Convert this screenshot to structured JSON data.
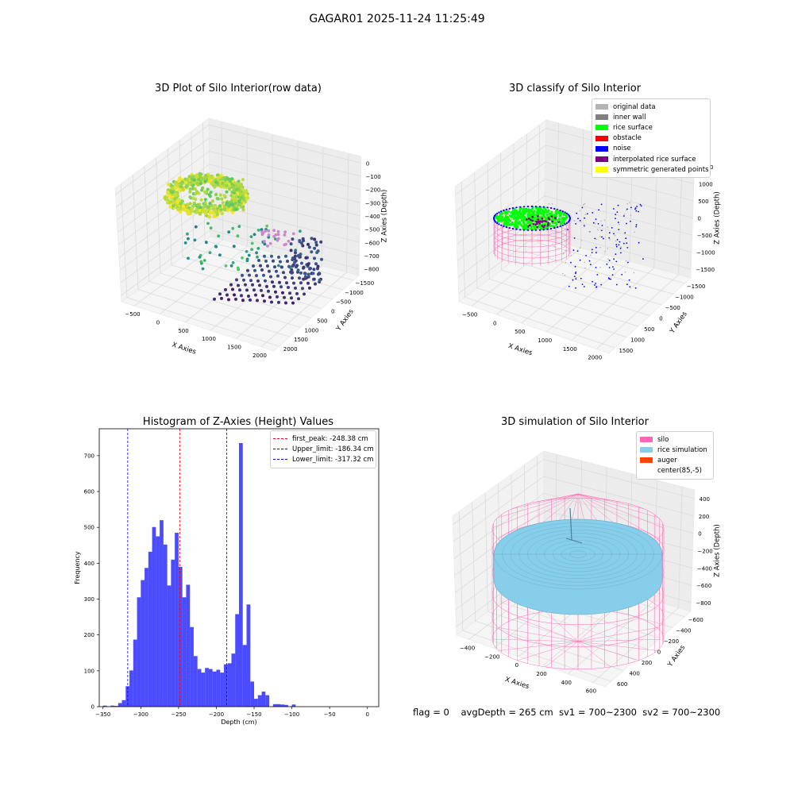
{
  "figure": {
    "suptitle": "GAGAR01 2025-11-24 11:25:49",
    "status": {
      "flag": "flag = 0",
      "avg_depth": "avgDepth = 265 cm",
      "sv1": "sv1 = 700~2300",
      "sv2": "sv2 = 700~2300"
    }
  },
  "chart_data": [
    {
      "type": "scatter",
      "title": "3D Plot of Silo Interior(row data)",
      "xlabel": "X Axies",
      "ylabel": "Y Axies",
      "zlabel": "Z Axies (Depth)",
      "x_ticks": [
        "−500",
        "0",
        "500",
        "1000",
        "1500",
        "2000"
      ],
      "y_ticks": [
        "−1500",
        "−1000",
        "−500",
        "0",
        "500",
        "1000",
        "1500",
        "2000"
      ],
      "z_ticks": [
        "0",
        "−100",
        "−200",
        "−300",
        "−400",
        "−500",
        "−600",
        "−700",
        "−800"
      ],
      "colormap": "viridis",
      "grid": true
    },
    {
      "type": "scatter",
      "title": "3D classify of Silo Interior",
      "xlabel": "X Axies",
      "ylabel": "Y Axies",
      "zlabel": "Z Axies (Depth)",
      "x_ticks": [
        "−500",
        "0",
        "500",
        "1000",
        "1500",
        "2000"
      ],
      "y_ticks": [
        "−1500",
        "−1000",
        "−500",
        "0",
        "500",
        "1000",
        "1500"
      ],
      "z_ticks": [
        "1500",
        "1000",
        "500",
        "0",
        "−500",
        "−1000",
        "−1500"
      ],
      "legend": [
        {
          "label": "original data",
          "color": "#b3b3b3"
        },
        {
          "label": "inner wall",
          "color": "#808080"
        },
        {
          "label": "rice surface",
          "color": "#00ff00"
        },
        {
          "label": "obstacle",
          "color": "#ff0000"
        },
        {
          "label": "noise",
          "color": "#0000ff"
        },
        {
          "label": "interpolated rice surface",
          "color": "#800080"
        },
        {
          "label": "symmetric generated points",
          "color": "#ffff00"
        }
      ],
      "legend_position": "top-right",
      "grid": true
    },
    {
      "type": "bar",
      "title": "Histogram of Z-Axies (Height) Values",
      "xlabel": "Depth (cm)",
      "ylabel": "Frequency",
      "xlim": [
        -355,
        15
      ],
      "ylim": [
        0,
        775
      ],
      "x_ticks": [
        -350,
        -300,
        -250,
        -200,
        -150,
        -100,
        -50,
        0
      ],
      "y_ticks": [
        0,
        100,
        200,
        300,
        400,
        500,
        600,
        700
      ],
      "bin_width": 5,
      "bin_start": -350,
      "values": [
        3,
        1,
        3,
        2,
        10,
        18,
        57,
        101,
        187,
        305,
        353,
        387,
        432,
        501,
        475,
        520,
        452,
        338,
        410,
        485,
        390,
        305,
        340,
        222,
        141,
        105,
        95,
        108,
        105,
        98,
        103,
        95,
        118,
        121,
        148,
        258,
        735,
        172,
        285,
        70,
        22,
        32,
        42,
        32,
        0,
        7,
        7,
        6,
        5,
        0,
        6
      ],
      "bar_color": "#0000ff",
      "lines": [
        {
          "label": "first_peak: -248.38 cm",
          "x": -248.38,
          "color": "#ff0000"
        },
        {
          "label": "Upper_limit: -186.34 cm",
          "x": -186.34,
          "color": "#0000ff"
        },
        {
          "label": "Lower_limit: -317.32 cm",
          "x": -317.32,
          "color": "#0000ff"
        }
      ],
      "legend_position": "top-right"
    },
    {
      "type": "scatter",
      "title": "3D simulation of Silo Interior",
      "xlabel": "X Axies",
      "ylabel": "Y Axies",
      "zlabel": "Z Axies (Depth)",
      "x_ticks": [
        "−400",
        "−200",
        "0",
        "200",
        "400",
        "600"
      ],
      "y_ticks": [
        "−600",
        "−400",
        "−200",
        "0",
        "200",
        "400",
        "600"
      ],
      "z_ticks": [
        "400",
        "200",
        "0",
        "−200",
        "−400",
        "−600",
        "−800"
      ],
      "legend": [
        {
          "label": "silo",
          "color": "#ff69b4"
        },
        {
          "label": "rice simulation",
          "color": "#87ceeb"
        },
        {
          "label": "auger",
          "color": "#ff4500"
        },
        {
          "label": "center(85,-5)",
          "color": ""
        }
      ],
      "legend_position": "top-right",
      "grid": true
    }
  ]
}
